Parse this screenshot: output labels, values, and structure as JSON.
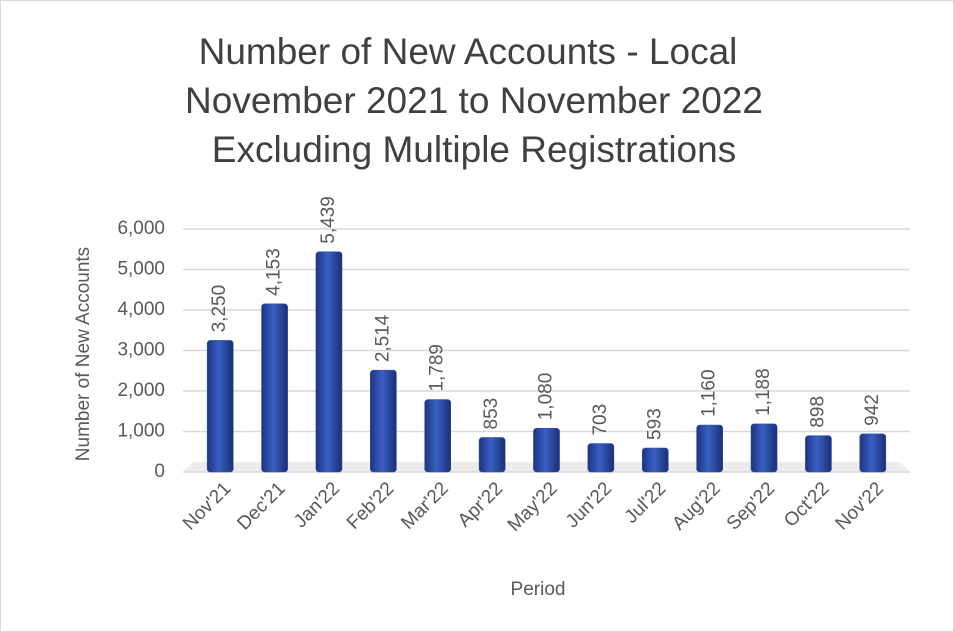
{
  "chart_data": {
    "type": "bar",
    "title": [
      "Number of New Accounts - Local",
      "November 2021 to November 2022",
      "Excluding Multiple Registrations"
    ],
    "x_label": "Period",
    "y_label": "Number of New Accounts",
    "categories": [
      "Nov'21",
      "Dec'21",
      "Jan'22",
      "Feb'22",
      "Mar'22",
      "Apr'22",
      "May'22",
      "Jun'22",
      "Jul'22",
      "Aug'22",
      "Sep'22",
      "Oct'22",
      "Nov'22"
    ],
    "values": [
      3250,
      4153,
      5439,
      2514,
      1789,
      853,
      1080,
      703,
      593,
      1160,
      1188,
      898,
      942
    ],
    "value_labels": [
      "3,250",
      "4,153",
      "5,439",
      "2,514",
      "1,789",
      "853",
      "1,080",
      "703",
      "593",
      "1,160",
      "1,188",
      "898",
      "942"
    ],
    "color": "#2e4fa8",
    "ylim": [
      0,
      6000
    ],
    "yticks": [
      0,
      {
        "value": 1000,
        "label": "1,000"
      },
      {
        "value": 2000,
        "label": "2,000"
      },
      {
        "value": 3000,
        "label": "3,000"
      },
      {
        "value": 4000,
        "label": "4,000"
      },
      {
        "value": 5000,
        "label": "5,000"
      },
      {
        "value": 6000,
        "label": "6,000"
      }
    ],
    "grid": true
  }
}
